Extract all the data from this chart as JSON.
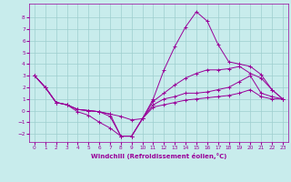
{
  "title": "",
  "xlabel": "Windchill (Refroidissement éolien,°C)",
  "ylabel": "",
  "background_color": "#c8ecec",
  "line_color": "#990099",
  "grid_color": "#9ecece",
  "xlim": [
    -0.5,
    23.5
  ],
  "ylim": [
    -2.7,
    9.2
  ],
  "yticks": [
    -2,
    -1,
    0,
    1,
    2,
    3,
    4,
    5,
    6,
    7,
    8
  ],
  "xticks": [
    0,
    1,
    2,
    3,
    4,
    5,
    6,
    7,
    8,
    9,
    10,
    11,
    12,
    13,
    14,
    15,
    16,
    17,
    18,
    19,
    20,
    21,
    22,
    23
  ],
  "lines": [
    {
      "x": [
        0,
        1,
        2,
        3,
        4,
        5,
        6,
        7,
        8,
        9,
        10,
        11,
        12,
        13,
        14,
        15,
        16,
        17,
        18,
        19,
        20,
        21,
        22,
        23
      ],
      "y": [
        3.0,
        2.0,
        0.7,
        0.5,
        -0.1,
        -0.4,
        -1.0,
        -1.5,
        -2.2,
        -2.2,
        -0.7,
        1.0,
        3.5,
        5.5,
        7.2,
        8.5,
        7.7,
        5.7,
        4.2,
        4.0,
        3.8,
        3.1,
        1.8,
        1.0
      ]
    },
    {
      "x": [
        0,
        1,
        2,
        3,
        4,
        5,
        6,
        7,
        8,
        9,
        10,
        11,
        12,
        13,
        14,
        15,
        16,
        17,
        18,
        19,
        20,
        21,
        22,
        23
      ],
      "y": [
        3.0,
        2.0,
        0.7,
        0.5,
        0.1,
        0.0,
        -0.1,
        -0.3,
        -0.5,
        -0.8,
        -0.7,
        0.8,
        1.5,
        2.2,
        2.8,
        3.2,
        3.5,
        3.5,
        3.6,
        3.8,
        3.2,
        2.8,
        1.8,
        1.0
      ]
    },
    {
      "x": [
        0,
        1,
        2,
        3,
        4,
        5,
        6,
        7,
        8,
        9,
        10,
        11,
        12,
        13,
        14,
        15,
        16,
        17,
        18,
        19,
        20,
        21,
        22,
        23
      ],
      "y": [
        3.0,
        2.0,
        0.7,
        0.5,
        0.1,
        0.0,
        -0.1,
        -0.3,
        -2.2,
        -2.2,
        -0.7,
        0.5,
        1.0,
        1.2,
        1.5,
        1.5,
        1.6,
        1.8,
        2.0,
        2.5,
        3.0,
        1.5,
        1.2,
        1.0
      ]
    },
    {
      "x": [
        0,
        1,
        2,
        3,
        4,
        5,
        6,
        7,
        8,
        9,
        10,
        11,
        12,
        13,
        14,
        15,
        16,
        17,
        18,
        19,
        20,
        21,
        22,
        23
      ],
      "y": [
        3.0,
        2.0,
        0.7,
        0.5,
        0.1,
        0.0,
        -0.1,
        -0.5,
        -2.2,
        -2.2,
        -0.7,
        0.3,
        0.5,
        0.7,
        0.9,
        1.0,
        1.1,
        1.2,
        1.3,
        1.5,
        1.8,
        1.2,
        1.0,
        1.0
      ]
    }
  ]
}
